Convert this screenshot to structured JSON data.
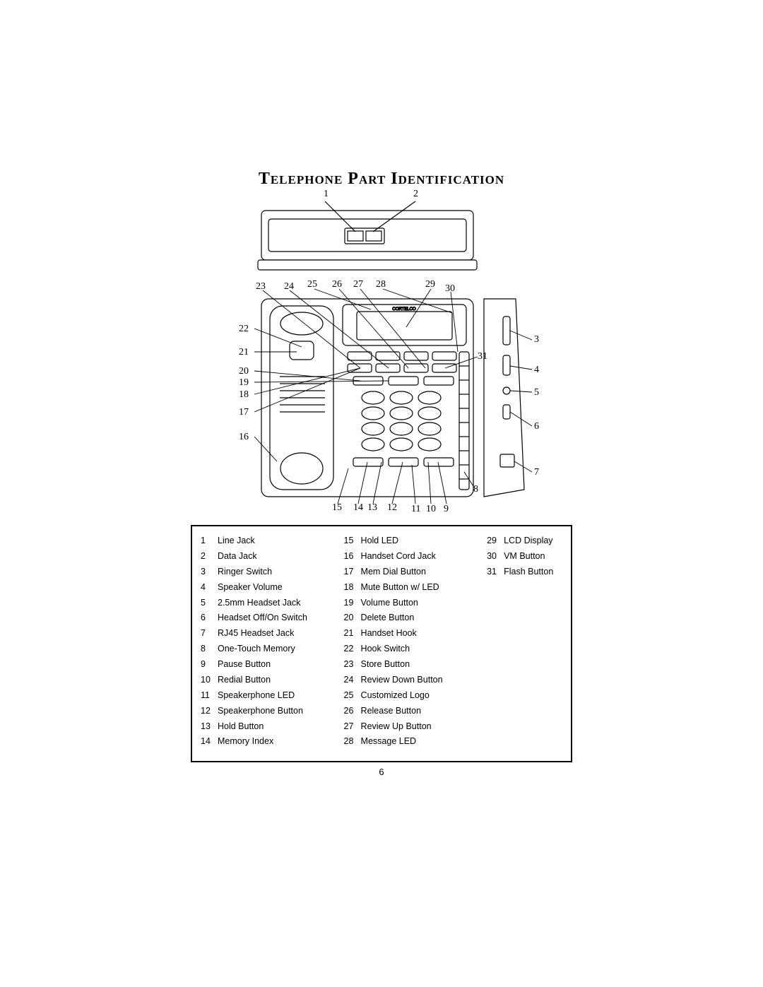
{
  "title": "Telephone Part Identification",
  "page_number": "6",
  "diagram_brand": "CORTELCO",
  "callout_numbers": {
    "top": [
      "1",
      "2"
    ],
    "upper_row": [
      "23",
      "24",
      "25",
      "26",
      "27",
      "28",
      "29",
      "30"
    ],
    "left": [
      "22",
      "21",
      "20",
      "19",
      "18",
      "17",
      "16"
    ],
    "right": [
      "3",
      "4",
      "5",
      "6",
      "7",
      "31",
      "8"
    ],
    "bottom": [
      "15",
      "14",
      "13",
      "12",
      "11",
      "10",
      "9"
    ]
  },
  "parts": {
    "col1": [
      {
        "n": "1",
        "label": "Line Jack"
      },
      {
        "n": "2",
        "label": "Data Jack"
      },
      {
        "n": "3",
        "label": "Ringer Switch"
      },
      {
        "n": "4",
        "label": "Speaker Volume"
      },
      {
        "n": "5",
        "label": "2.5mm Headset Jack"
      },
      {
        "n": "6",
        "label": "Headset Off/On Switch"
      },
      {
        "n": "7",
        "label": "RJ45 Headset Jack"
      },
      {
        "n": "8",
        "label": "One-Touch Memory"
      },
      {
        "n": "9",
        "label": "Pause Button"
      },
      {
        "n": "10",
        "label": "Redial Button"
      },
      {
        "n": "11",
        "label": "Speakerphone LED"
      },
      {
        "n": "12",
        "label": "Speakerphone Button"
      },
      {
        "n": "13",
        "label": "Hold Button"
      },
      {
        "n": "14",
        "label": "Memory Index"
      }
    ],
    "col2": [
      {
        "n": "15",
        "label": "Hold LED"
      },
      {
        "n": "16",
        "label": "Handset Cord Jack"
      },
      {
        "n": "17",
        "label": "Mem Dial Button"
      },
      {
        "n": "18",
        "label": "Mute Button w/ LED"
      },
      {
        "n": "19",
        "label": "Volume Button"
      },
      {
        "n": "20",
        "label": "Delete Button"
      },
      {
        "n": "21",
        "label": "Handset Hook"
      },
      {
        "n": "22",
        "label": "Hook Switch"
      },
      {
        "n": "23",
        "label": "Store Button"
      },
      {
        "n": "24",
        "label": "Review Down Button"
      },
      {
        "n": "25",
        "label": "Customized Logo"
      },
      {
        "n": "26",
        "label": "Release Button"
      },
      {
        "n": "27",
        "label": "Review Up Button"
      },
      {
        "n": "28",
        "label": "Message LED"
      }
    ],
    "col3": [
      {
        "n": "29",
        "label": "LCD Display"
      },
      {
        "n": "30",
        "label": "VM Button"
      },
      {
        "n": "31",
        "label": "Flash Button"
      }
    ]
  },
  "style": {
    "background": "#ffffff",
    "text_color": "#000000",
    "border_color": "#000000",
    "title_fontsize": 24,
    "body_fontsize": 12.5,
    "callout_fontsize": 14
  }
}
